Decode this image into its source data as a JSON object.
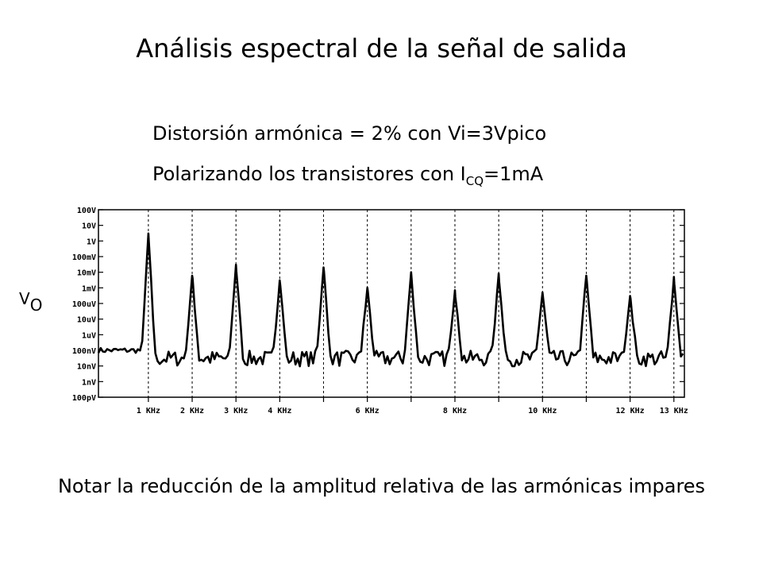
{
  "slide": {
    "title": "Análisis espectral de la señal de salida",
    "line1": "Distorsión armónica = 2% con Vi=3Vpico",
    "line2_main": "Polarizando los transistores con I",
    "line2_sub": "CQ",
    "line2_tail": "=1mA",
    "ylabel_main": "V",
    "ylabel_sub": "O",
    "footer": "Notar la reducción de la amplitud relativa de las armónicas impares"
  },
  "chart_data": {
    "type": "line",
    "title": "",
    "xlabel": "",
    "ylabel": "VO",
    "y_scale": "log",
    "ylim": [
      1e-10,
      100
    ],
    "xlim": [
      -0.14,
      13.24
    ],
    "x_unit": "KHz",
    "grid": false,
    "y_ticks": [
      {
        "value": 100,
        "label": "100V"
      },
      {
        "value": 10,
        "label": "10V"
      },
      {
        "value": 1,
        "label": "1V"
      },
      {
        "value": 0.1,
        "label": "100mV"
      },
      {
        "value": 0.01,
        "label": "10mV"
      },
      {
        "value": 0.001,
        "label": "1mV"
      },
      {
        "value": 0.0001,
        "label": "100uV"
      },
      {
        "value": 1e-05,
        "label": "10uV"
      },
      {
        "value": 1e-06,
        "label": "1uV"
      },
      {
        "value": 1e-07,
        "label": "100nV"
      },
      {
        "value": 1e-08,
        "label": "10nV"
      },
      {
        "value": 1e-09,
        "label": "1nV"
      },
      {
        "value": 1e-10,
        "label": "100pV"
      }
    ],
    "x_ticks": [
      {
        "value": 1,
        "label": "1 KHz"
      },
      {
        "value": 2,
        "label": "2 KHz"
      },
      {
        "value": 3,
        "label": "3 KHz"
      },
      {
        "value": 4,
        "label": "4 KHz"
      },
      {
        "value": 5,
        "label": ""
      },
      {
        "value": 6,
        "label": "6 KHz"
      },
      {
        "value": 7,
        "label": ""
      },
      {
        "value": 8,
        "label": "8 KHz"
      },
      {
        "value": 9,
        "label": ""
      },
      {
        "value": 10,
        "label": "10 KHz"
      },
      {
        "value": 11,
        "label": ""
      },
      {
        "value": 12,
        "label": "12 KHz"
      },
      {
        "value": 13,
        "label": "13 KHz"
      }
    ],
    "noise_floor": 3e-08,
    "series": [
      {
        "name": "",
        "peaks": [
          {
            "f": 1,
            "v": 3
          },
          {
            "f": 2,
            "v": 0.006
          },
          {
            "f": 3,
            "v": 0.03
          },
          {
            "f": 4,
            "v": 0.003
          },
          {
            "f": 5,
            "v": 0.02
          },
          {
            "f": 6,
            "v": 0.001
          },
          {
            "f": 7,
            "v": 0.01
          },
          {
            "f": 8,
            "v": 0.0007
          },
          {
            "f": 9,
            "v": 0.008
          },
          {
            "f": 10,
            "v": 0.0005
          },
          {
            "f": 11,
            "v": 0.006
          },
          {
            "f": 12,
            "v": 0.0003
          },
          {
            "f": 13,
            "v": 0.005
          }
        ]
      }
    ]
  }
}
